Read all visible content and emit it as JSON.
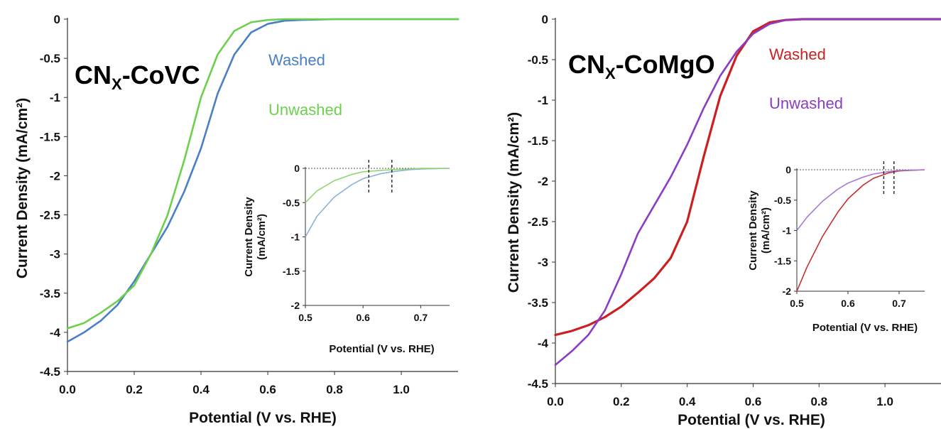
{
  "chart_data": [
    {
      "type": "line",
      "title_main": "CN",
      "title_sub": "X",
      "title_rest": "-CoVC",
      "xlabel": "Potential (V vs. RHE)",
      "ylabel": "Current Density (mA/cm²)",
      "xlim": [
        0,
        1.17
      ],
      "ylim": [
        -4.5,
        0
      ],
      "xticks": [
        "0.0",
        "0.2",
        "0.4",
        "0.6",
        "0.8",
        "1.0"
      ],
      "yticks": [
        "0",
        "-0.5",
        "-1",
        "-1.5",
        "-2",
        "-2.5",
        "-3",
        "-3.5",
        "-4",
        "-4.5"
      ],
      "series": [
        {
          "name": "Washed",
          "color": "#4a7fc6",
          "x": [
            0,
            0.05,
            0.1,
            0.15,
            0.2,
            0.25,
            0.3,
            0.35,
            0.4,
            0.45,
            0.5,
            0.55,
            0.6,
            0.65,
            0.7,
            0.8,
            1.0,
            1.17
          ],
          "y": [
            -4.12,
            -4.0,
            -3.85,
            -3.65,
            -3.35,
            -3.0,
            -2.65,
            -2.2,
            -1.65,
            -0.95,
            -0.45,
            -0.17,
            -0.06,
            -0.02,
            -0.01,
            0,
            0,
            0
          ]
        },
        {
          "name": "Unwashed",
          "color": "#6dd04b",
          "x": [
            0,
            0.05,
            0.1,
            0.15,
            0.2,
            0.25,
            0.3,
            0.35,
            0.4,
            0.45,
            0.5,
            0.55,
            0.6,
            0.65,
            0.7,
            0.8,
            1.0,
            1.17
          ],
          "y": [
            -3.95,
            -3.88,
            -3.75,
            -3.6,
            -3.4,
            -3.0,
            -2.5,
            -1.8,
            -1.0,
            -0.45,
            -0.15,
            -0.04,
            -0.01,
            0,
            0,
            0,
            0,
            0
          ]
        }
      ],
      "inset": {
        "xlabel": "Potential (V vs. RHE)",
        "ylabel_line1": "Current Density",
        "ylabel_line2": "(mA/cm²)",
        "xlim": [
          0.5,
          0.75
        ],
        "ylim": [
          -2,
          0
        ],
        "xticks": [
          "0.5",
          "0.6",
          "0.7"
        ],
        "yticks": [
          "0",
          "-0.5",
          "-1",
          "-1.5",
          "-2"
        ],
        "onset_markers": [
          0.61,
          0.65
        ],
        "series": [
          {
            "name": "Washed",
            "color": "#8ab0dc",
            "x": [
              0.5,
              0.52,
              0.55,
              0.58,
              0.6,
              0.63,
              0.65,
              0.68,
              0.7,
              0.75
            ],
            "y": [
              -1.0,
              -0.7,
              -0.42,
              -0.24,
              -0.15,
              -0.08,
              -0.05,
              -0.02,
              -0.01,
              0
            ]
          },
          {
            "name": "Unwashed",
            "color": "#8fd86e",
            "x": [
              0.5,
              0.52,
              0.55,
              0.58,
              0.6,
              0.63,
              0.65,
              0.68,
              0.7,
              0.75
            ],
            "y": [
              -0.5,
              -0.33,
              -0.18,
              -0.09,
              -0.05,
              -0.03,
              -0.02,
              -0.01,
              0,
              0
            ]
          }
        ]
      }
    },
    {
      "type": "line",
      "title_main": "CN",
      "title_sub": "X",
      "title_rest": "-CoMgO",
      "xlabel": "Potential (V vs. RHE)",
      "ylabel": "Current Density (mA/cm²)",
      "xlim": [
        0,
        1.17
      ],
      "ylim": [
        -4.5,
        0
      ],
      "xticks": [
        "0.0",
        "0.2",
        "0.4",
        "0.6",
        "0.8",
        "1.0"
      ],
      "yticks": [
        "0",
        "-0.5",
        "-1",
        "-1.5",
        "-2",
        "-2.5",
        "-3",
        "-3.5",
        "-4",
        "-4.5"
      ],
      "series": [
        {
          "name": "Washed",
          "color": "#cc1f1f",
          "x": [
            0,
            0.05,
            0.1,
            0.15,
            0.2,
            0.25,
            0.3,
            0.35,
            0.4,
            0.45,
            0.5,
            0.55,
            0.6,
            0.65,
            0.7,
            0.75,
            0.8,
            1.0,
            1.17
          ],
          "y": [
            -3.9,
            -3.85,
            -3.78,
            -3.68,
            -3.55,
            -3.38,
            -3.2,
            -2.95,
            -2.5,
            -1.7,
            -0.95,
            -0.45,
            -0.15,
            -0.04,
            -0.01,
            0,
            0,
            0,
            0
          ]
        },
        {
          "name": "Unwashed",
          "color": "#8a3dc4",
          "x": [
            0,
            0.05,
            0.1,
            0.15,
            0.2,
            0.25,
            0.3,
            0.35,
            0.4,
            0.45,
            0.5,
            0.55,
            0.6,
            0.65,
            0.7,
            0.75,
            0.8,
            1.0,
            1.17
          ],
          "y": [
            -4.27,
            -4.1,
            -3.9,
            -3.6,
            -3.15,
            -2.65,
            -2.3,
            -1.95,
            -1.55,
            -1.1,
            -0.7,
            -0.4,
            -0.18,
            -0.06,
            -0.01,
            0,
            0,
            0,
            0
          ]
        }
      ],
      "inset": {
        "xlabel": "Potential (V vs. RHE)",
        "ylabel_line1": "Current Density",
        "ylabel_line2": "(mA/cm²)",
        "xlim": [
          0.5,
          0.75
        ],
        "ylim": [
          -2,
          0
        ],
        "xticks": [
          "0.5",
          "0.6",
          "0.7"
        ],
        "yticks": [
          "0",
          "-0.5",
          "-1",
          "-1.5",
          "-2"
        ],
        "onset_markers": [
          0.67,
          0.69
        ],
        "series": [
          {
            "name": "Washed",
            "color": "#c53030",
            "x": [
              0.5,
              0.52,
              0.55,
              0.58,
              0.6,
              0.63,
              0.65,
              0.68,
              0.7,
              0.75
            ],
            "y": [
              -2.0,
              -1.6,
              -1.1,
              -0.7,
              -0.48,
              -0.25,
              -0.14,
              -0.05,
              -0.02,
              0
            ]
          },
          {
            "name": "Unwashed",
            "color": "#a77ad6",
            "x": [
              0.5,
              0.52,
              0.55,
              0.58,
              0.6,
              0.63,
              0.65,
              0.68,
              0.7,
              0.75
            ],
            "y": [
              -1.0,
              -0.78,
              -0.52,
              -0.32,
              -0.22,
              -0.12,
              -0.07,
              -0.03,
              -0.01,
              0
            ]
          }
        ]
      }
    }
  ]
}
